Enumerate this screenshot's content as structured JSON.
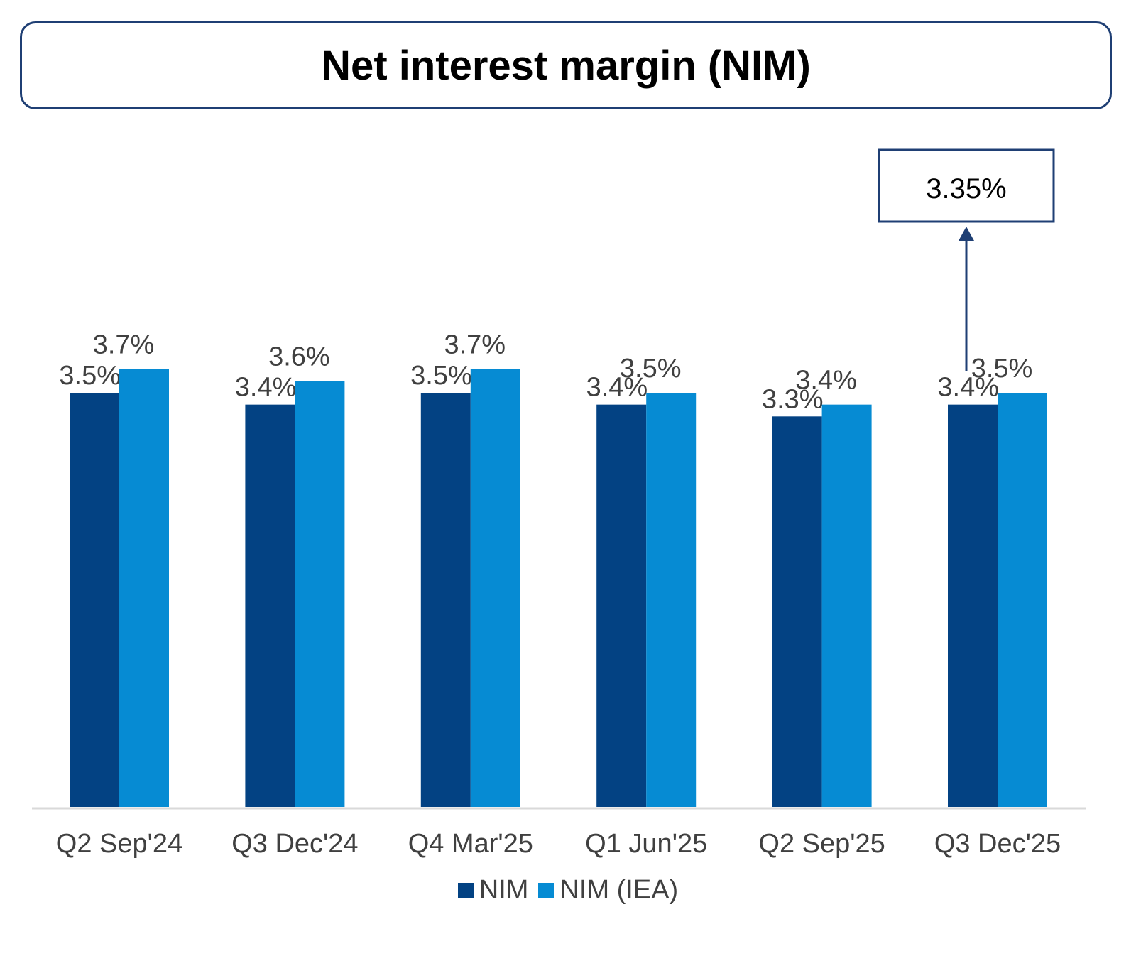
{
  "colors": {
    "nim": "#034283",
    "nim_iea": "#068bd3",
    "axis": "#d9d9d9",
    "callout_border": "#1f3f74",
    "title_border": "#1f3f74"
  },
  "chart_data": {
    "type": "bar",
    "title": "Net interest margin (NIM)",
    "categories": [
      "Q2 Sep'24",
      "Q3 Dec'24",
      "Q4 Mar'25",
      "Q1 Jun'25",
      "Q2 Sep'25",
      "Q3 Dec'25"
    ],
    "series": [
      {
        "name": "NIM",
        "values": [
          3.5,
          3.4,
          3.5,
          3.4,
          3.3,
          3.4
        ],
        "labels": [
          "3.5%",
          "3.4%",
          "3.5%",
          "3.4%",
          "3.3%",
          "3.4%"
        ]
      },
      {
        "name": "NIM (IEA)",
        "values": [
          3.7,
          3.6,
          3.7,
          3.5,
          3.4,
          3.5
        ],
        "labels": [
          "3.7%",
          "3.6%",
          "3.7%",
          "3.5%",
          "3.4%",
          "3.5%"
        ]
      }
    ],
    "annotation": {
      "text": "3.35%",
      "category": "Q3 Dec'25"
    },
    "grid": false,
    "legend": "bottom"
  }
}
